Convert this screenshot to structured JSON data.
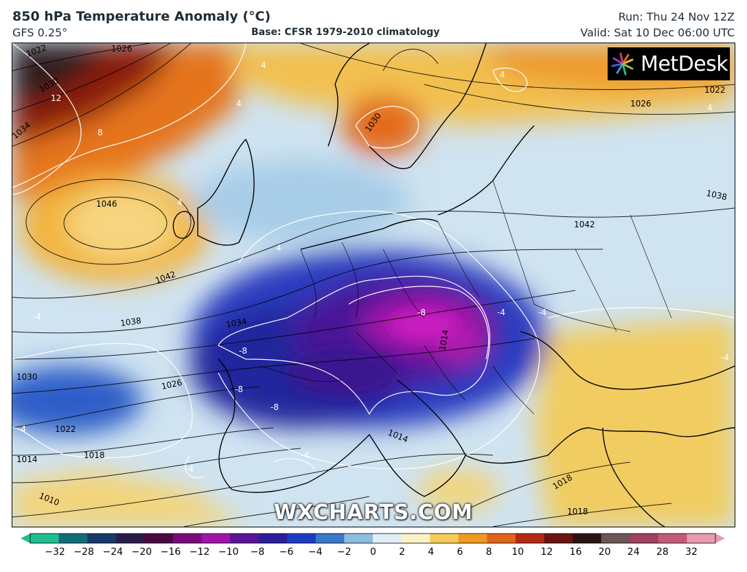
{
  "header": {
    "title": "850 hPa Temperature Anomaly (°C)",
    "model": "GFS 0.25°",
    "base": "Base: CFSR 1979-2010 climatology",
    "run": "Run: Thu 24 Nov 12Z",
    "valid": "Valid: Sat 10 Dec 06:00 UTC"
  },
  "logo": {
    "text": "MetDesk",
    "icon": "metdesk-starburst-icon"
  },
  "watermark": "WXCHARTS.COM",
  "isobar_labels": [
    "1022",
    "1026",
    "1030",
    "1034",
    "1046",
    "1042",
    "1038",
    "1034",
    "1030",
    "1026",
    "1022",
    "1018",
    "1014",
    "1010",
    "1030",
    "1026",
    "1022",
    "1038",
    "1042",
    "1014",
    "1018",
    "1018",
    "1014"
  ],
  "anomaly_labels": [
    "12",
    "8",
    "4",
    "4",
    "4",
    "4",
    "-4",
    "-4",
    "-8",
    "-8",
    "-8",
    "-8",
    "-4",
    "-4",
    "-4",
    "4",
    "4",
    "-4",
    "-4"
  ],
  "colorbar": {
    "ticks": [
      "−32",
      "−28",
      "−24",
      "−20",
      "−16",
      "−12",
      "−10",
      "−8",
      "−6",
      "−4",
      "−2",
      "0",
      "2",
      "4",
      "6",
      "8",
      "10",
      "12",
      "16",
      "20",
      "24",
      "28",
      "32"
    ],
    "colors": [
      "#1fbf8f",
      "#0f6f78",
      "#163a6a",
      "#2a1c4a",
      "#4a0a44",
      "#7a0c7a",
      "#a214a8",
      "#5c1496",
      "#2a1e9c",
      "#1d3cc4",
      "#3a78c8",
      "#8fbde0",
      "#e0eef6",
      "#fbf3c8",
      "#f3cc5a",
      "#ef9a22",
      "#e0641a",
      "#b42814",
      "#6a1410",
      "#2a1414",
      "#6e5656",
      "#9e4460",
      "#c45a7a",
      "#e89ab0"
    ]
  }
}
